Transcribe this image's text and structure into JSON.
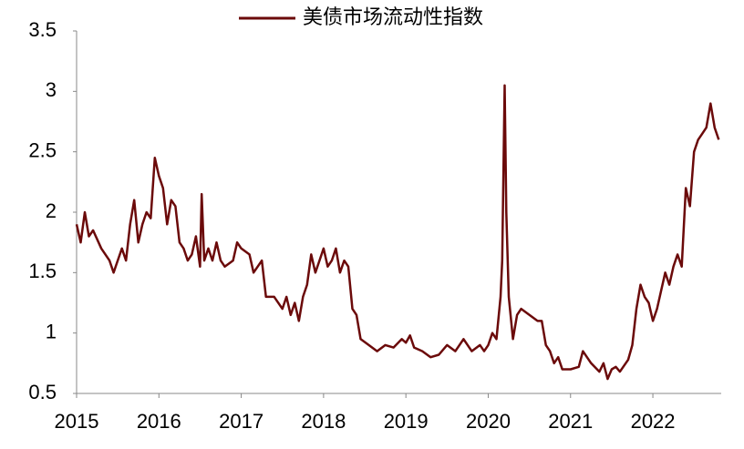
{
  "chart_data": {
    "type": "line",
    "x": [
      2015.0,
      2015.05,
      2015.1,
      2015.15,
      2015.2,
      2015.3,
      2015.4,
      2015.45,
      2015.5,
      2015.55,
      2015.6,
      2015.65,
      2015.7,
      2015.75,
      2015.8,
      2015.85,
      2015.9,
      2015.95,
      2016.0,
      2016.05,
      2016.1,
      2016.15,
      2016.2,
      2016.25,
      2016.3,
      2016.35,
      2016.4,
      2016.45,
      2016.5,
      2016.52,
      2016.55,
      2016.6,
      2016.65,
      2016.7,
      2016.75,
      2016.8,
      2016.9,
      2016.95,
      2017.0,
      2017.1,
      2017.15,
      2017.25,
      2017.3,
      2017.4,
      2017.5,
      2017.55,
      2017.6,
      2017.65,
      2017.7,
      2017.75,
      2017.8,
      2017.85,
      2017.9,
      2017.95,
      2018.0,
      2018.05,
      2018.1,
      2018.15,
      2018.2,
      2018.25,
      2018.3,
      2018.35,
      2018.4,
      2018.45,
      2018.55,
      2018.65,
      2018.75,
      2018.85,
      2018.95,
      2019.0,
      2019.05,
      2019.1,
      2019.2,
      2019.3,
      2019.4,
      2019.5,
      2019.6,
      2019.7,
      2019.8,
      2019.9,
      2019.95,
      2020.0,
      2020.05,
      2020.1,
      2020.15,
      2020.17,
      2020.2,
      2020.22,
      2020.25,
      2020.3,
      2020.35,
      2020.4,
      2020.5,
      2020.6,
      2020.65,
      2020.7,
      2020.75,
      2020.8,
      2020.85,
      2020.9,
      2021.0,
      2021.1,
      2021.15,
      2021.25,
      2021.35,
      2021.4,
      2021.45,
      2021.5,
      2021.55,
      2021.6,
      2021.7,
      2021.75,
      2021.8,
      2021.85,
      2021.9,
      2021.95,
      2022.0,
      2022.05,
      2022.1,
      2022.15,
      2022.2,
      2022.25,
      2022.3,
      2022.35,
      2022.4,
      2022.45,
      2022.5,
      2022.55,
      2022.6,
      2022.65,
      2022.7,
      2022.75,
      2022.8
    ],
    "series": [
      {
        "name": "美债市场流动性指数",
        "color": "#6b0a0a",
        "values": [
          1.9,
          1.75,
          2.0,
          1.8,
          1.85,
          1.7,
          1.6,
          1.5,
          1.6,
          1.7,
          1.6,
          1.9,
          2.1,
          1.75,
          1.9,
          2.0,
          1.95,
          2.45,
          2.3,
          2.2,
          1.9,
          2.1,
          2.05,
          1.75,
          1.7,
          1.6,
          1.65,
          1.8,
          1.55,
          2.15,
          1.6,
          1.7,
          1.6,
          1.75,
          1.6,
          1.55,
          1.6,
          1.75,
          1.7,
          1.65,
          1.5,
          1.6,
          1.3,
          1.3,
          1.2,
          1.3,
          1.15,
          1.25,
          1.1,
          1.3,
          1.4,
          1.65,
          1.5,
          1.6,
          1.7,
          1.55,
          1.6,
          1.7,
          1.5,
          1.6,
          1.55,
          1.2,
          1.15,
          0.95,
          0.9,
          0.85,
          0.9,
          0.88,
          0.95,
          0.92,
          0.98,
          0.88,
          0.85,
          0.8,
          0.82,
          0.9,
          0.85,
          0.95,
          0.85,
          0.9,
          0.85,
          0.9,
          1.0,
          0.95,
          1.3,
          1.6,
          3.05,
          2.0,
          1.3,
          0.95,
          1.15,
          1.2,
          1.15,
          1.1,
          1.1,
          0.9,
          0.85,
          0.75,
          0.8,
          0.7,
          0.7,
          0.72,
          0.85,
          0.75,
          0.68,
          0.75,
          0.62,
          0.7,
          0.72,
          0.68,
          0.78,
          0.9,
          1.2,
          1.4,
          1.3,
          1.25,
          1.1,
          1.2,
          1.35,
          1.5,
          1.4,
          1.55,
          1.65,
          1.55,
          2.2,
          2.05,
          2.5,
          2.6,
          2.65,
          2.7,
          2.9,
          2.7,
          2.6
        ]
      }
    ],
    "xlim": [
      2015,
      2022.83
    ],
    "xticks": [
      2015,
      2016,
      2017,
      2018,
      2019,
      2020,
      2021,
      2022
    ],
    "ylim": [
      0.5,
      3.5
    ],
    "yticks": [
      0.5,
      1,
      1.5,
      2,
      2.5,
      3,
      3.5
    ],
    "legend": "top"
  }
}
